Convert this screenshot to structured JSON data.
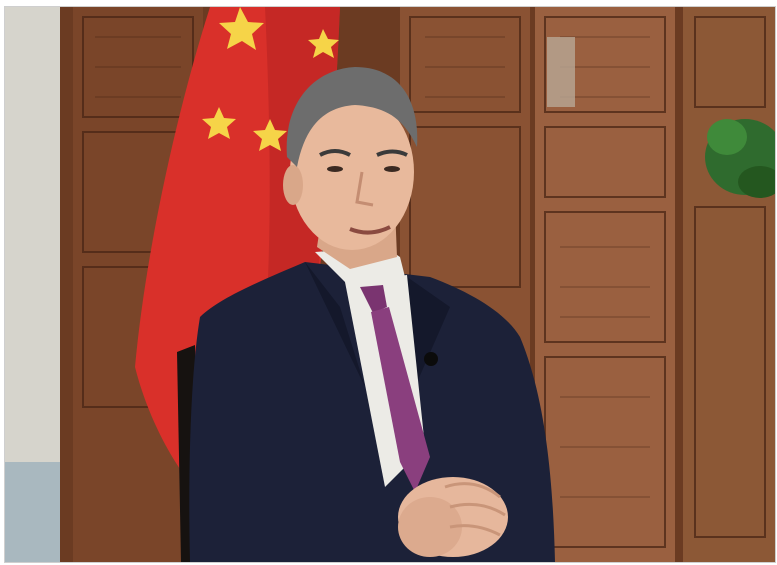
{
  "photo": {
    "scene": "portrait",
    "colors": {
      "flag_red": "#d9302a",
      "flag_star": "#f6d448",
      "screen_wood": "#6b3b22",
      "wall": "#c9c6bd",
      "suit": "#1c2138",
      "shirt": "#ecebe6",
      "tie": "#8a3f7e",
      "skin": "#e8b99c",
      "hair": "#6d6d6d",
      "plant": "#2f6b2e"
    }
  }
}
